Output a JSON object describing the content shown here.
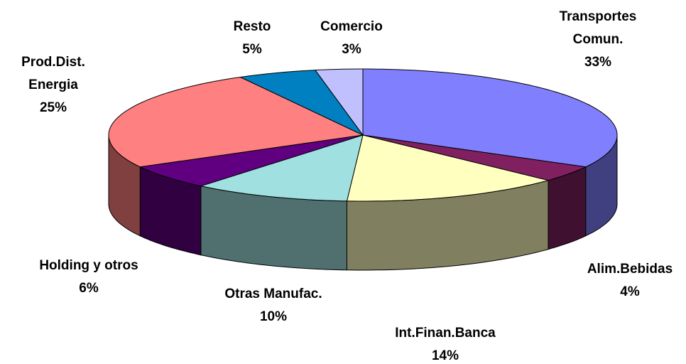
{
  "chart_data": {
    "type": "pie3d",
    "categories": [
      "Transportes Comun.",
      "Alim.Bebidas",
      "Int.Finan.Banca",
      "Otras Manufac.",
      "Holding y otros",
      "Prod.Dist. Energia",
      "Resto",
      "Comercio"
    ],
    "values": [
      33,
      4,
      14,
      10,
      6,
      25,
      5,
      3
    ],
    "value_labels": [
      "33%",
      "4%",
      "14%",
      "10%",
      "6%",
      "25%",
      "5%",
      "3%"
    ],
    "colors": [
      "#8080ff",
      "#802060",
      "#ffffc0",
      "#a0e0e0",
      "#600080",
      "#ff8080",
      "#0080c0",
      "#c0c0ff"
    ]
  }
}
